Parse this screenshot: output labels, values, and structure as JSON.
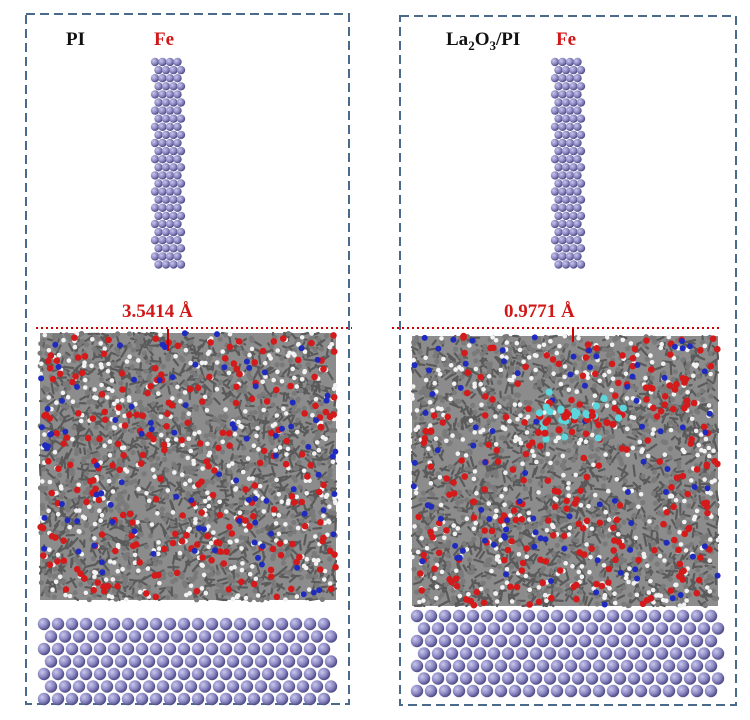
{
  "panels": [
    {
      "id": "pi",
      "title_main": "PI",
      "title_subscript": [],
      "metal_label": "Fe",
      "distance_label": "3.5414 Å",
      "has_la2o3": false
    },
    {
      "id": "la2o3-pi",
      "title_main": "La2O3/PI",
      "title_parts": [
        "La",
        "2",
        "O",
        "3",
        "/PI"
      ],
      "metal_label": "Fe",
      "distance_label": "0.9771 Å",
      "has_la2o3": true
    }
  ],
  "colors": {
    "frame": "#4a6a8c",
    "iron_atom": "#8a87c2",
    "carbon": "#6e6e6e",
    "oxygen": "#d41a1a",
    "nitrogen": "#1f2bbf",
    "hydrogen": "#f2f2f2",
    "lanthanum": "#5ad6dc",
    "label_red": "#d01818",
    "label_black": "#111111",
    "distance_line": "#cc0000"
  }
}
